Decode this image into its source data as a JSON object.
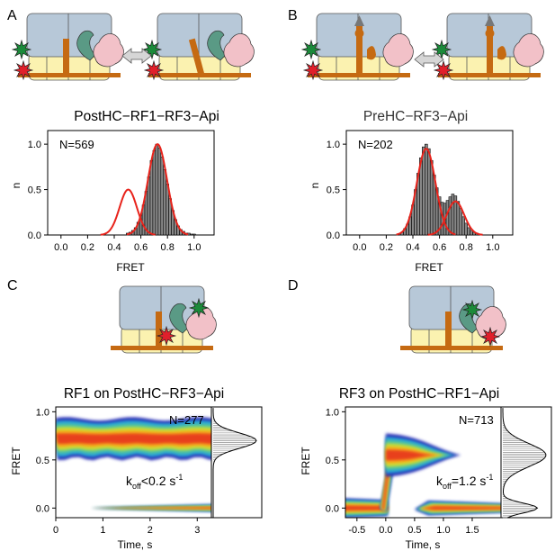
{
  "panels": {
    "A": {
      "letter": "A",
      "title": "PostHC−RF1−RF3−Api",
      "count": "N=569",
      "xlabel": "FRET",
      "ylabel": "n"
    },
    "B": {
      "letter": "B",
      "title": "PreHC−RF3−Api",
      "count": "N=202",
      "xlabel": "FRET",
      "ylabel": "n"
    },
    "C": {
      "letter": "C",
      "title": "RF1 on PostHC−RF3−Api",
      "count": "N=277",
      "xlabel": "Time, s",
      "ylabel": "FRET",
      "koff_prefix": "k",
      "koff_sub": "off",
      "koff_value": "<0.2 s",
      "koff_exp": "-1"
    },
    "D": {
      "letter": "D",
      "title": "RF3 on PostHC−RF1−Api",
      "count": "N=713",
      "xlabel": "Time, s",
      "ylabel": "FRET",
      "koff_prefix": "k",
      "koff_sub": "off",
      "koff_value": "=1.2 s",
      "koff_exp": "-1"
    }
  },
  "colors": {
    "histogram_fill": "#888888",
    "fit_curve": "#e8231b",
    "ribosome_body": "#b7c8d8",
    "ribosome_small": "#fbf2b0",
    "mrna": "#c56a12",
    "factor_green": "#5a9a85",
    "factor_pink": "#f2c1c8",
    "star_green": "#1b8a3a",
    "star_red": "#e0202b",
    "arrow": "#d0d0d0"
  },
  "chart_data": [
    {
      "panel": "A",
      "type": "bar",
      "title": "PostHC−RF1−RF3−Api",
      "xlabel": "FRET",
      "ylabel": "n",
      "xlim": [
        -0.1,
        1.15
      ],
      "ylim": [
        0,
        1.15
      ],
      "xticks": [
        "0.0",
        "0.2",
        "0.4",
        "0.6",
        "0.8",
        "1.0"
      ],
      "yticks": [
        "0.0",
        "0.5",
        "1.0"
      ],
      "annotation": "N=569",
      "x": [
        0.5,
        0.52,
        0.54,
        0.56,
        0.58,
        0.6,
        0.62,
        0.64,
        0.66,
        0.68,
        0.7,
        0.72,
        0.74,
        0.76,
        0.78,
        0.8,
        0.82,
        0.84,
        0.86,
        0.88,
        0.9,
        0.92,
        0.94,
        0.96,
        0.98,
        1.0
      ],
      "values": [
        0.02,
        0.03,
        0.05,
        0.08,
        0.14,
        0.22,
        0.33,
        0.48,
        0.64,
        0.82,
        0.93,
        1.0,
        0.96,
        0.86,
        0.72,
        0.56,
        0.4,
        0.27,
        0.17,
        0.1,
        0.06,
        0.04,
        0.02,
        0.02,
        0.01,
        0.01
      ],
      "fits": [
        {
          "mu": 0.505,
          "sigma": 0.065,
          "amp": 0.5
        },
        {
          "mu": 0.725,
          "sigma": 0.072,
          "amp": 1.0
        }
      ]
    },
    {
      "panel": "B",
      "type": "bar",
      "title": "PreHC−RF3−Api",
      "xlabel": "FRET",
      "ylabel": "n",
      "xlim": [
        -0.1,
        1.15
      ],
      "ylim": [
        0,
        1.15
      ],
      "xticks": [
        "0.0",
        "0.2",
        "0.4",
        "0.6",
        "0.8",
        "1.0"
      ],
      "yticks": [
        "0.0",
        "0.5",
        "1.0"
      ],
      "annotation": "N=202",
      "x": [
        0.32,
        0.34,
        0.36,
        0.38,
        0.4,
        0.42,
        0.44,
        0.46,
        0.48,
        0.5,
        0.52,
        0.54,
        0.56,
        0.58,
        0.6,
        0.62,
        0.64,
        0.66,
        0.68,
        0.7,
        0.72,
        0.74,
        0.76,
        0.78,
        0.8,
        0.82,
        0.84,
        0.86,
        0.88,
        0.9
      ],
      "values": [
        0.03,
        0.07,
        0.12,
        0.2,
        0.33,
        0.5,
        0.68,
        0.85,
        0.97,
        1.0,
        0.95,
        0.82,
        0.66,
        0.52,
        0.42,
        0.36,
        0.35,
        0.38,
        0.42,
        0.45,
        0.43,
        0.37,
        0.29,
        0.2,
        0.13,
        0.08,
        0.05,
        0.03,
        0.02,
        0.01
      ],
      "fits": [
        {
          "mu": 0.5,
          "sigma": 0.07,
          "amp": 0.95
        },
        {
          "mu": 0.72,
          "sigma": 0.065,
          "amp": 0.37
        }
      ]
    },
    {
      "panel": "C",
      "type": "heatmap",
      "title": "RF1 on PostHC−RF3−Api",
      "xlabel": "Time, s",
      "ylabel": "FRET",
      "xlim": [
        0,
        3.3
      ],
      "ylim": [
        -0.1,
        1.05
      ],
      "xticks": [
        "0",
        "1",
        "2",
        "3"
      ],
      "yticks": [
        "0.0",
        "0.5",
        "1.0"
      ],
      "annotation": "N=277",
      "koff": "<0.2 s-1",
      "states": [
        {
          "fret": 0.72,
          "t_start": 0,
          "t_end": 3.3
        },
        {
          "fret": 0.0,
          "t_start": 0.75,
          "t_end": 3.3
        }
      ],
      "side_histogram": {
        "peaks": [
          {
            "fret": 0.7,
            "sigma": 0.08,
            "amp": 1.0
          }
        ]
      }
    },
    {
      "panel": "D",
      "type": "heatmap",
      "title": "RF3 on PostHC−RF1−Api",
      "xlabel": "Time, s",
      "ylabel": "FRET",
      "xlim": [
        -0.7,
        2.0
      ],
      "ylim": [
        -0.1,
        1.05
      ],
      "xticks": [
        "-0.5",
        "0.0",
        "0.5",
        "1.0",
        "1.5"
      ],
      "yticks": [
        "0.0",
        "0.5",
        "1.0"
      ],
      "annotation": "N=713",
      "koff": "=1.2 s-1",
      "states": [
        {
          "fret": 0.0,
          "t_start": -0.7,
          "t_end": 0.0
        },
        {
          "fret": 0.55,
          "t_start": 0.0,
          "t_end": 1.3
        },
        {
          "fret": 0.0,
          "t_start": 0.5,
          "t_end": 2.0
        }
      ],
      "side_histogram": {
        "peaks": [
          {
            "fret": 0.55,
            "sigma": 0.12,
            "amp": 1.0
          },
          {
            "fret": 0.0,
            "sigma": 0.05,
            "amp": 0.8
          }
        ]
      }
    }
  ]
}
